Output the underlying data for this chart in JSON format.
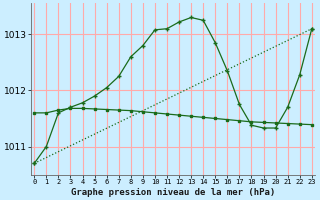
{
  "background_color": "#cceeff",
  "grid_color": "#ffaaaa",
  "line_color": "#1a6b1a",
  "xlabel": "Graphe pression niveau de la mer (hPa)",
  "x_ticks": [
    0,
    1,
    2,
    3,
    4,
    5,
    6,
    7,
    8,
    9,
    10,
    11,
    12,
    13,
    14,
    15,
    16,
    17,
    18,
    19,
    20,
    21,
    22,
    23
  ],
  "y_ticks": [
    1011,
    1012,
    1013
  ],
  "ylim": [
    1010.5,
    1013.55
  ],
  "xlim": [
    -0.3,
    23.3
  ],
  "curve1_x": [
    0,
    1,
    2,
    3,
    4,
    5,
    6,
    7,
    8,
    9,
    10,
    11,
    12,
    13,
    14,
    15,
    16,
    17,
    18,
    19,
    20,
    21,
    22,
    23
  ],
  "curve1_y": [
    1011.6,
    1011.6,
    1011.65,
    1011.68,
    1011.68,
    1011.67,
    1011.66,
    1011.65,
    1011.64,
    1011.62,
    1011.6,
    1011.58,
    1011.56,
    1011.54,
    1011.52,
    1011.5,
    1011.48,
    1011.46,
    1011.44,
    1011.43,
    1011.42,
    1011.41,
    1011.4,
    1011.39
  ],
  "curve2_x": [
    0,
    1,
    2,
    3,
    4,
    5,
    6,
    7,
    8,
    9,
    10,
    11,
    12,
    13,
    14,
    15,
    16,
    17,
    18,
    19,
    20,
    21,
    22,
    23
  ],
  "curve2_y": [
    1010.7,
    1011.0,
    1011.6,
    1011.7,
    1011.78,
    1011.9,
    1012.05,
    1012.25,
    1012.6,
    1012.8,
    1013.08,
    1013.1,
    1013.22,
    1013.3,
    1013.25,
    1012.85,
    1012.35,
    1011.75,
    1011.38,
    1011.33,
    1011.33,
    1011.7,
    1012.28,
    1013.1
  ],
  "curve3_x": [
    0,
    23
  ],
  "curve3_y": [
    1010.7,
    1013.1
  ],
  "xlabel_fontsize": 6.5,
  "ytick_fontsize": 6.5,
  "xtick_fontsize": 5.0
}
